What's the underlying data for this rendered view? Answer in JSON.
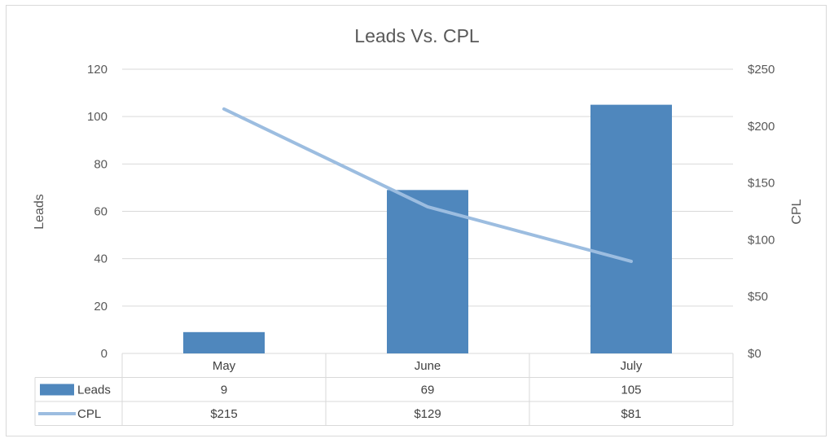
{
  "chart_data": {
    "type": "bar",
    "title": "Leads Vs. CPL",
    "categories": [
      "May",
      "June",
      "July"
    ],
    "series": [
      {
        "name": "Leads",
        "type": "bar",
        "axis": "left",
        "values": [
          9,
          69,
          105
        ],
        "color": "#4f87bd"
      },
      {
        "name": "CPL",
        "type": "line",
        "axis": "right",
        "values": [
          215,
          129,
          81
        ],
        "color": "#9cbde0"
      }
    ],
    "ylabel": "Leads",
    "y2label": "CPL",
    "ylim": [
      0,
      120
    ],
    "y2lim": [
      0,
      250
    ],
    "yticks": [
      "0",
      "20",
      "40",
      "60",
      "80",
      "100",
      "120"
    ],
    "y2ticks": [
      "$0",
      "$50",
      "$100",
      "$150",
      "$200",
      "$250"
    ],
    "data_table": {
      "rows": [
        {
          "label": "Leads",
          "cells": [
            "9",
            "69",
            "105"
          ]
        },
        {
          "label": "CPL",
          "cells": [
            "$215",
            "$129",
            "$81"
          ]
        }
      ]
    },
    "grid": true,
    "legend": "data-table"
  }
}
